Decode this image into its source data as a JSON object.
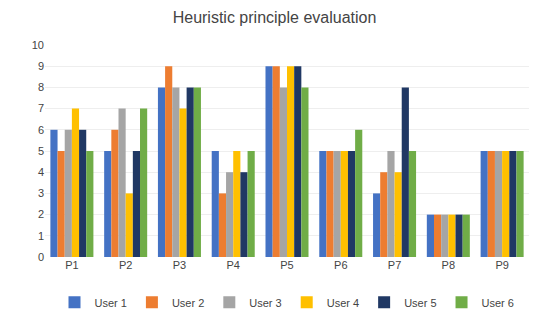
{
  "chart_data": {
    "type": "bar",
    "title": "Heuristic principle evaluation",
    "categories": [
      "P1",
      "P2",
      "P3",
      "P4",
      "P5",
      "P6",
      "P7",
      "P8",
      "P9"
    ],
    "series": [
      {
        "name": "User 1",
        "color": "#4472C4",
        "values": [
          6,
          5,
          8,
          5,
          9,
          5,
          3,
          2,
          5
        ]
      },
      {
        "name": "User 2",
        "color": "#ED7D31",
        "values": [
          5,
          6,
          9,
          3,
          9,
          5,
          4,
          2,
          5
        ]
      },
      {
        "name": "User 3",
        "color": "#A5A5A5",
        "values": [
          6,
          7,
          8,
          4,
          8,
          5,
          5,
          2,
          5
        ]
      },
      {
        "name": "User 4",
        "color": "#FFC000",
        "values": [
          7,
          3,
          7,
          5,
          9,
          5,
          4,
          2,
          5
        ]
      },
      {
        "name": "User 5",
        "color": "#203864",
        "values": [
          6,
          5,
          8,
          4,
          9,
          5,
          8,
          2,
          5
        ]
      },
      {
        "name": "User 6",
        "color": "#70AD47",
        "values": [
          5,
          7,
          8,
          5,
          8,
          6,
          5,
          2,
          5
        ]
      }
    ],
    "ylim": [
      0,
      10
    ],
    "yticks": [
      0,
      1,
      2,
      3,
      4,
      5,
      6,
      7,
      8,
      9,
      10
    ],
    "grid": true,
    "legend": "bottom"
  }
}
